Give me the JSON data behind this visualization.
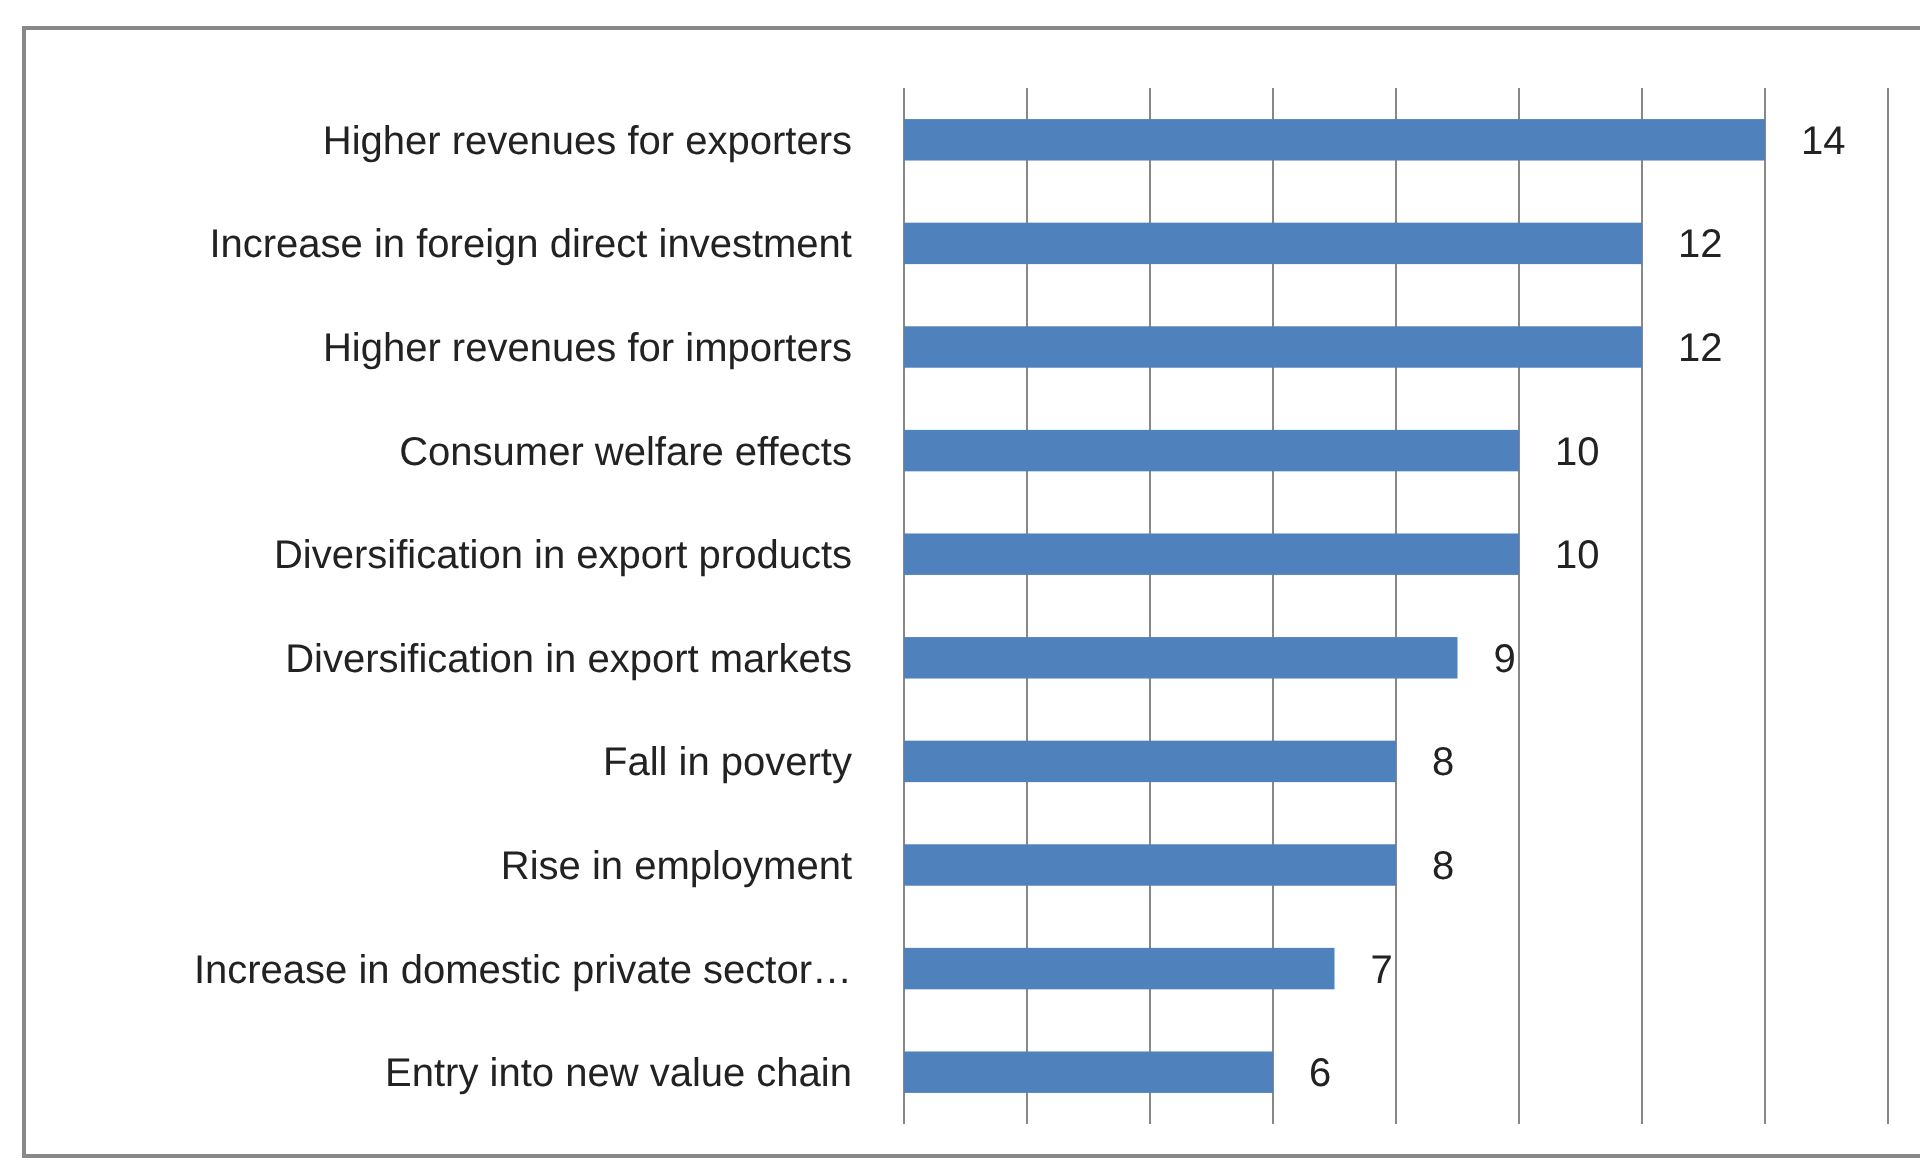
{
  "chart_data": {
    "type": "bar",
    "orientation": "horizontal",
    "categories": [
      "Higher revenues for exporters",
      "Increase in foreign direct investment",
      "Higher revenues for importers",
      "Consumer welfare effects",
      "Diversification in export products",
      "Diversification in export markets",
      "Fall in poverty",
      "Rise in employment",
      "Increase in domestic private sector…",
      "Entry into new value chain"
    ],
    "values": [
      14,
      12,
      12,
      10,
      10,
      9,
      8,
      8,
      7,
      6
    ],
    "color": "#4f81bd",
    "xlim": [
      0,
      16
    ],
    "xticks": [
      {
        "value": 0,
        "label": null
      },
      {
        "value": 2,
        "label": null
      },
      {
        "value": 4,
        "label": null
      },
      {
        "value": 6,
        "label": null
      },
      {
        "value": 8,
        "label": null
      },
      {
        "value": 10,
        "label": null
      },
      {
        "value": 12,
        "label": null
      },
      {
        "value": 14,
        "label": null
      },
      {
        "value": 16,
        "label": null
      }
    ],
    "grid": "x",
    "tick_labels": "y",
    "data_labels": true
  }
}
